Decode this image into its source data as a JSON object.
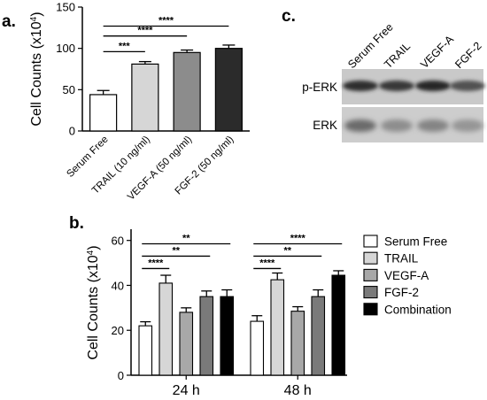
{
  "panels": {
    "a": "a.",
    "b": "b.",
    "c": "c."
  },
  "chart_data": [
    {
      "panel": "a",
      "type": "bar",
      "categories": [
        "Serum Free",
        "TRAIL (10 ng/ml)",
        "VEGF-A (50 ng/ml)",
        "FGF-2 (50 ng/ml)"
      ],
      "values": [
        44,
        81,
        95,
        100
      ],
      "errors": [
        5,
        3,
        3,
        4
      ],
      "colors": [
        "#ffffff",
        "#d6d6d6",
        "#8c8c8c",
        "#2b2b2b"
      ],
      "ylabel": "Cell Counts (x10",
      "ylabel_sup": "4",
      "ylabel_close": ")",
      "ylim": [
        0,
        150
      ],
      "yticks": [
        0,
        50,
        100,
        150
      ],
      "significance": [
        {
          "from": 0,
          "to": 1,
          "label": "***"
        },
        {
          "from": 0,
          "to": 2,
          "label": "****"
        },
        {
          "from": 0,
          "to": 3,
          "label": "****"
        }
      ]
    },
    {
      "panel": "b",
      "type": "bar",
      "categories": [
        "24 h",
        "48 h"
      ],
      "series": [
        {
          "name": "Serum Free",
          "color": "#ffffff",
          "values": [
            22,
            24
          ],
          "errors": [
            1.8,
            2.5
          ]
        },
        {
          "name": "TRAIL",
          "color": "#d6d6d6",
          "values": [
            41,
            42.5
          ],
          "errors": [
            3.5,
            3
          ]
        },
        {
          "name": "VEGF-A",
          "color": "#a8a8a8",
          "values": [
            28,
            28.5
          ],
          "errors": [
            2,
            2
          ]
        },
        {
          "name": "FGF-2",
          "color": "#7a7a7a",
          "values": [
            35,
            35
          ],
          "errors": [
            2.5,
            3
          ]
        },
        {
          "name": "Combination",
          "color": "#000000",
          "values": [
            35,
            44.5
          ],
          "errors": [
            3,
            2
          ]
        }
      ],
      "ylabel": "Cell Counts (x10",
      "ylabel_sup": "4",
      "ylabel_close": ")",
      "ylim": [
        0,
        65
      ],
      "yticks": [
        0,
        20,
        40,
        60
      ],
      "significance": [
        {
          "group": 0,
          "from": 0,
          "to": 1,
          "label": "****"
        },
        {
          "group": 0,
          "from": 0,
          "to": 3,
          "label": "**"
        },
        {
          "group": 0,
          "from": 0,
          "to": 4,
          "label": "**"
        },
        {
          "group": 1,
          "from": 0,
          "to": 1,
          "label": "****"
        },
        {
          "group": 1,
          "from": 0,
          "to": 3,
          "label": "**"
        },
        {
          "group": 1,
          "from": 0,
          "to": 4,
          "label": "****"
        }
      ]
    }
  ],
  "blot": {
    "lanes": [
      "Serum Free",
      "TRAIL",
      "VEGF-A",
      "FGF-2"
    ],
    "rows": [
      {
        "label": "p-ERK",
        "intensity": [
          0.9,
          0.85,
          0.95,
          0.7
        ]
      },
      {
        "label": "ERK",
        "intensity": [
          0.55,
          0.35,
          0.4,
          0.3
        ]
      }
    ]
  }
}
